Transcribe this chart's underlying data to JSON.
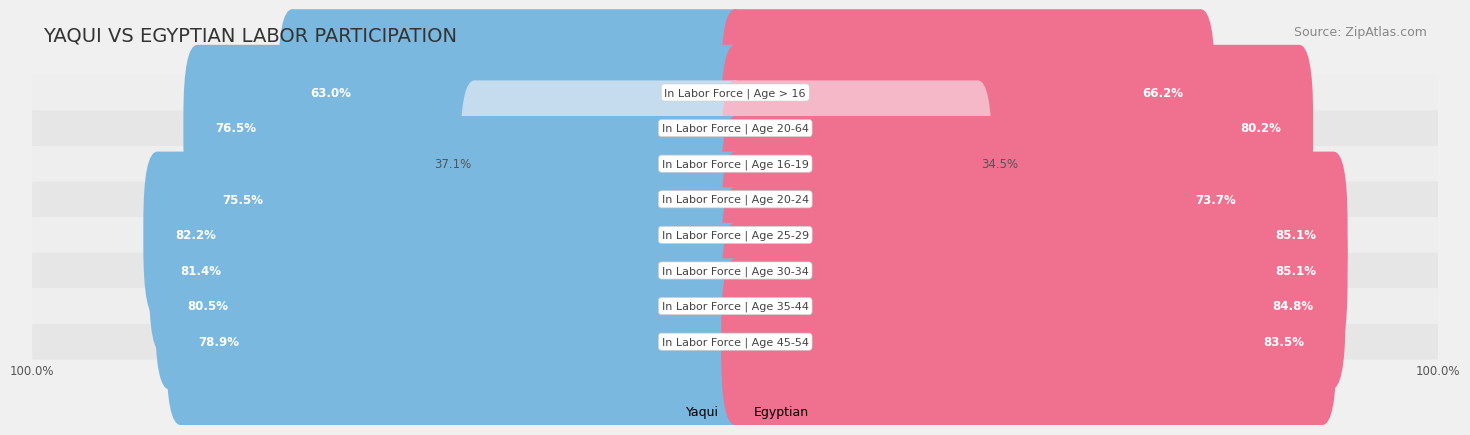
{
  "title": "YAQUI VS EGYPTIAN LABOR PARTICIPATION",
  "source": "Source: ZipAtlas.com",
  "categories": [
    "In Labor Force | Age > 16",
    "In Labor Force | Age 20-64",
    "In Labor Force | Age 16-19",
    "In Labor Force | Age 20-24",
    "In Labor Force | Age 25-29",
    "In Labor Force | Age 30-34",
    "In Labor Force | Age 35-44",
    "In Labor Force | Age 45-54"
  ],
  "yaqui_values": [
    63.0,
    76.5,
    37.1,
    75.5,
    82.2,
    81.4,
    80.5,
    78.9
  ],
  "egyptian_values": [
    66.2,
    80.2,
    34.5,
    73.7,
    85.1,
    85.1,
    84.8,
    83.5
  ],
  "yaqui_color": "#7ab8e0",
  "yaqui_color_light": "#c5dcef",
  "egyptian_color": "#f07090",
  "egyptian_color_light": "#f5b8c8",
  "background_color": "#f0f0f0",
  "row_bg_even": "#eeeeee",
  "row_bg_odd": "#e6e6e6",
  "title_fontsize": 14,
  "source_fontsize": 9,
  "label_fontsize": 8,
  "value_fontsize": 8.5,
  "tick_fontsize": 8.5,
  "legend_yaqui": "Yaqui",
  "legend_egyptian": "Egyptian",
  "max_value": 100.0
}
